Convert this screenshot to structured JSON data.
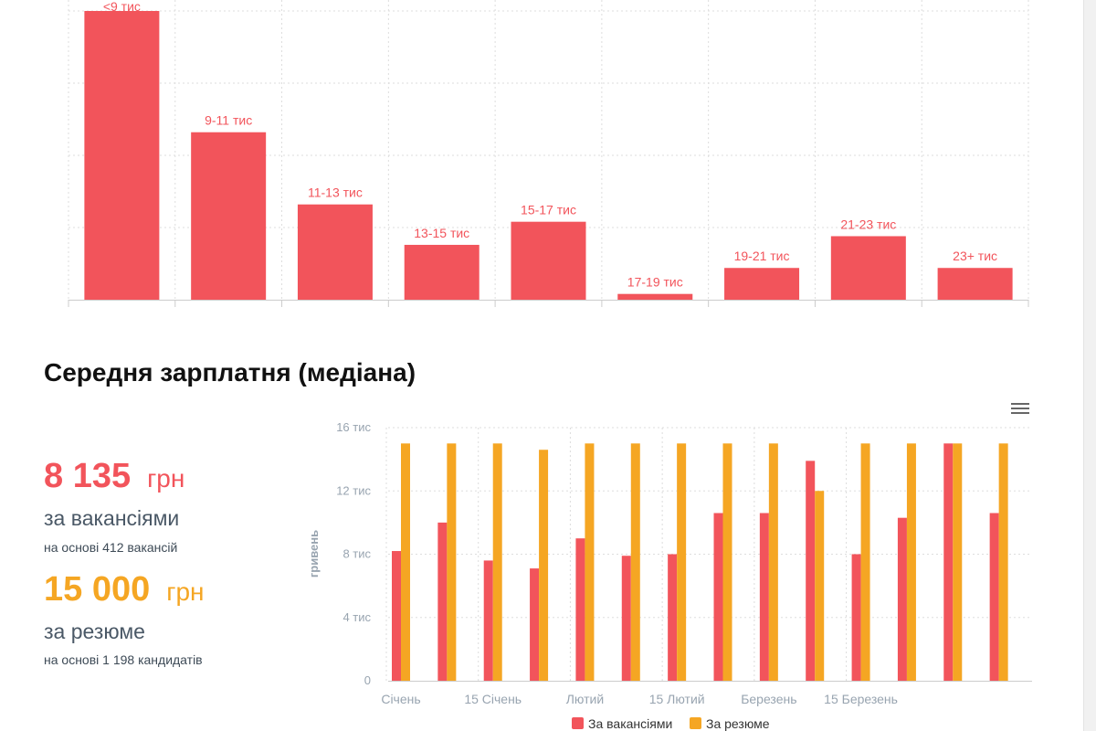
{
  "colors": {
    "vacancies": "#f2545b",
    "resume": "#f5a623"
  },
  "chart_data": [
    {
      "type": "bar",
      "title": "",
      "categories": [
        "<9 тис",
        "9-11 тис",
        "11-13 тис",
        "13-15 тис",
        "15-17 тис",
        "17-19 тис",
        "19-21 тис",
        "21-23 тис",
        "23+ тис"
      ],
      "values": [
        100,
        58,
        33,
        19,
        27,
        2,
        11,
        22,
        11
      ],
      "ylim": [
        0,
        100
      ],
      "data_labels": true,
      "grid": true
    },
    {
      "type": "bar",
      "title": "Середня зарплатня (медіана)",
      "ylabel": "гривень",
      "ylim": [
        0,
        16000
      ],
      "yticks": [
        "0",
        "4 тис",
        "8 тис",
        "12 тис",
        "16 тис"
      ],
      "xtick_labels": [
        "Січень",
        "15 Січень",
        "Лютий",
        "15 Лютий",
        "Березень",
        "15 Березень"
      ],
      "xtick_positions": [
        0,
        2,
        4,
        6,
        8,
        10
      ],
      "legend_position": "bottom",
      "series": [
        {
          "name": "За вакансіями",
          "values": [
            8200,
            10000,
            7600,
            7100,
            9000,
            7900,
            8000,
            10600,
            10600,
            13900,
            8000,
            10300,
            15000,
            10600
          ]
        },
        {
          "name": "За резюме",
          "values": [
            15000,
            15000,
            15000,
            14600,
            15000,
            15000,
            15000,
            15000,
            15000,
            12000,
            15000,
            15000,
            15000,
            15000
          ]
        }
      ]
    }
  ],
  "median": {
    "title": "Середня зарплатня (медіана)",
    "vacancies": {
      "value": "8 135",
      "unit": "грн",
      "label": "за вакансіями",
      "note": "на основі 412 вакансій"
    },
    "resume": {
      "value": "15 000",
      "unit": "грн",
      "label": "за резюме",
      "note": "на основі 1 198 кандидатів"
    }
  },
  "menu": {
    "icon": "hamburger-menu-icon"
  }
}
